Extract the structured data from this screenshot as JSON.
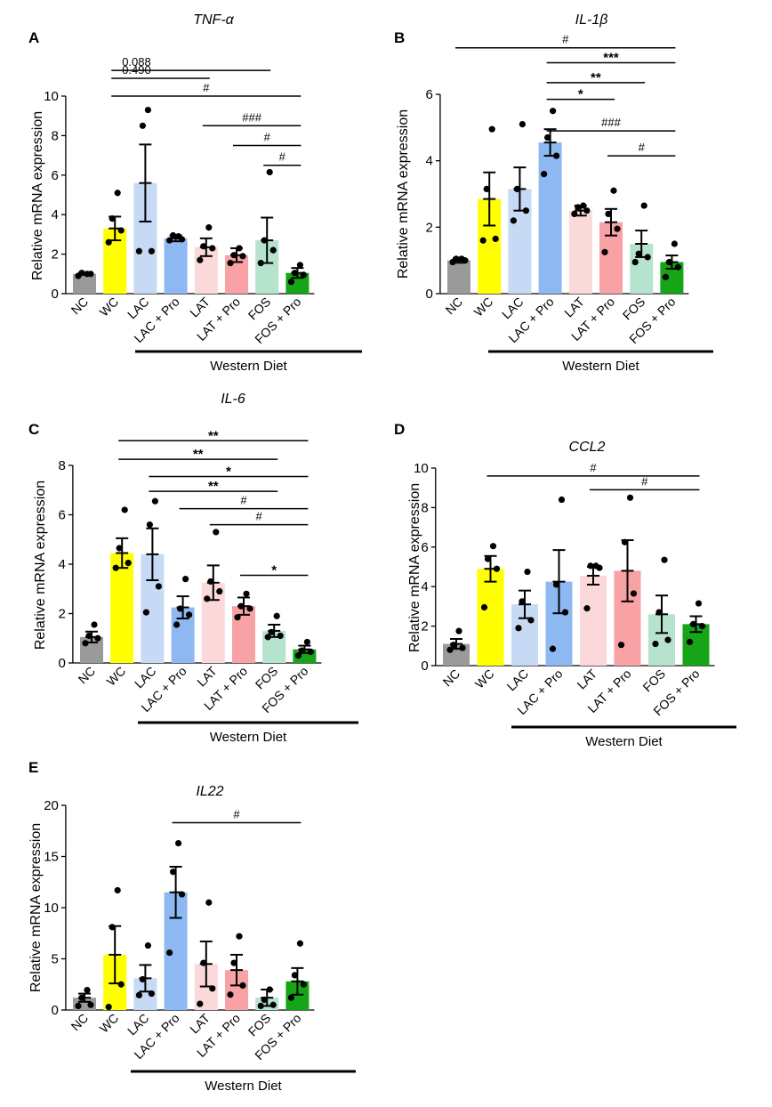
{
  "figure": {
    "group_label": "Western Diet",
    "categories": [
      "NC",
      "WC",
      "LAC",
      "LAC + Pro",
      "LAT",
      "LAT + Pro",
      "FOS",
      "FOS + Pro"
    ],
    "colors": [
      "#9a9a9a",
      "#ffff00",
      "#c6d9f5",
      "#8db8f2",
      "#fbd9da",
      "#f8a2a5",
      "#b5e3cd",
      "#16a516"
    ]
  },
  "chart_data": [
    {
      "id": "A",
      "type": "bar",
      "title": "TNF-α",
      "ylabel": "Relative mRNA expression",
      "ylim": [
        0,
        10
      ],
      "yticks": [
        0,
        2,
        4,
        6,
        8,
        10
      ],
      "categories": [
        "NC",
        "WC",
        "LAC",
        "LAC + Pro",
        "LAT",
        "LAT + Pro",
        "FOS",
        "FOS + Pro"
      ],
      "values": [
        1.0,
        3.3,
        5.6,
        2.8,
        2.35,
        1.95,
        2.7,
        1.05
      ],
      "sem": [
        0.05,
        0.6,
        1.95,
        0.15,
        0.45,
        0.35,
        1.15,
        0.25
      ],
      "points": [
        [
          0.9,
          1.0,
          1.05,
          1.0
        ],
        [
          2.6,
          3.2,
          3.8,
          5.1
        ],
        [
          2.15,
          2.15,
          8.5,
          9.3
        ],
        [
          2.7,
          2.75,
          2.95,
          2.9
        ],
        [
          1.7,
          2.3,
          2.4,
          3.35
        ],
        [
          1.55,
          1.9,
          1.95,
          2.3
        ],
        [
          1.55,
          2.2,
          2.7,
          6.15
        ],
        [
          0.6,
          0.95,
          1.05,
          1.45
        ]
      ],
      "comparisons": [
        {
          "label": "0.088",
          "from": "WC",
          "to": "FOS",
          "y": 11.3,
          "style": "p"
        },
        {
          "label": "0.490",
          "from": "WC",
          "to": "LAT",
          "y": 10.9,
          "style": "p"
        },
        {
          "label": "#",
          "from": "WC",
          "to": "FOS + Pro",
          "y": 10.0,
          "style": "hash"
        },
        {
          "label": "###",
          "from": "LAT",
          "to": "FOS + Pro",
          "y": 8.5,
          "style": "hash"
        },
        {
          "label": "#",
          "from": "LAT + Pro",
          "to": "FOS + Pro",
          "y": 7.5,
          "style": "hash"
        },
        {
          "label": "#",
          "from": "FOS",
          "to": "FOS + Pro",
          "y": 6.5,
          "style": "hash"
        }
      ]
    },
    {
      "id": "B",
      "type": "bar",
      "title": "IL-1β",
      "ylabel": "Relative mRNA expression",
      "ylim": [
        0,
        6
      ],
      "yticks": [
        0,
        2,
        4,
        6
      ],
      "categories": [
        "NC",
        "WC",
        "LAC",
        "LAC + Pro",
        "LAT",
        "LAT + Pro",
        "FOS",
        "FOS + Pro"
      ],
      "values": [
        1.0,
        2.85,
        3.15,
        4.55,
        2.5,
        2.15,
        1.5,
        0.95
      ],
      "sem": [
        0.07,
        0.8,
        0.65,
        0.4,
        0.15,
        0.4,
        0.4,
        0.2
      ],
      "points": [
        [
          0.95,
          1.0,
          1.05,
          1.05
        ],
        [
          1.6,
          1.65,
          3.15,
          4.95
        ],
        [
          2.2,
          2.5,
          3.15,
          5.1
        ],
        [
          3.6,
          4.15,
          4.7,
          5.5
        ],
        [
          2.4,
          2.5,
          2.6,
          2.65
        ],
        [
          1.25,
          1.95,
          2.4,
          3.1
        ],
        [
          0.95,
          1.1,
          1.2,
          2.65
        ],
        [
          0.5,
          0.8,
          0.95,
          1.5
        ]
      ],
      "comparisons": [
        {
          "label": "#",
          "from": "NC",
          "to": "FOS + Pro",
          "y": 7.4,
          "style": "hash"
        },
        {
          "label": "***",
          "from": "LAC + Pro",
          "to": "FOS + Pro",
          "y": 6.95,
          "style": "star"
        },
        {
          "label": "**",
          "from": "LAC + Pro",
          "to": "FOS",
          "y": 6.35,
          "style": "star"
        },
        {
          "label": "*",
          "from": "LAC + Pro",
          "to": "LAT + Pro",
          "y": 5.85,
          "style": "star"
        },
        {
          "label": "###",
          "from": "LAC + Pro",
          "to": "FOS + Pro",
          "y": 4.9,
          "style": "hash"
        },
        {
          "label": "#",
          "from": "LAT + Pro",
          "to": "FOS + Pro",
          "y": 4.15,
          "style": "hash"
        }
      ]
    },
    {
      "id": "C",
      "type": "bar",
      "title": "IL-6",
      "ylabel": "Relative mRNA expression",
      "ylim": [
        0,
        8
      ],
      "yticks": [
        0,
        2,
        4,
        6,
        8
      ],
      "categories": [
        "NC",
        "WC",
        "LAC",
        "LAC + Pro",
        "LAT",
        "LAT + Pro",
        "FOS",
        "FOS + Pro"
      ],
      "values": [
        1.05,
        4.45,
        4.4,
        2.25,
        3.25,
        2.3,
        1.3,
        0.55
      ],
      "sem": [
        0.22,
        0.6,
        1.05,
        0.45,
        0.7,
        0.35,
        0.25,
        0.15
      ],
      "points": [
        [
          0.8,
          1.0,
          1.1,
          1.55
        ],
        [
          3.85,
          4.05,
          4.65,
          6.2
        ],
        [
          2.05,
          3.1,
          5.6,
          6.55
        ],
        [
          1.55,
          1.95,
          2.2,
          3.4
        ],
        [
          2.6,
          2.9,
          3.3,
          5.3
        ],
        [
          1.85,
          2.2,
          2.3,
          2.8
        ],
        [
          1.05,
          1.1,
          1.25,
          1.9
        ],
        [
          0.3,
          0.45,
          0.5,
          0.85
        ]
      ],
      "comparisons": [
        {
          "label": "**",
          "from": "WC",
          "to": "FOS + Pro",
          "y": 9.0,
          "style": "star"
        },
        {
          "label": "**",
          "from": "WC",
          "to": "FOS",
          "y": 8.25,
          "style": "star"
        },
        {
          "label": "*",
          "from": "LAC",
          "to": "FOS + Pro",
          "y": 7.55,
          "style": "star"
        },
        {
          "label": "**",
          "from": "LAC",
          "to": "FOS",
          "y": 6.95,
          "style": "star"
        },
        {
          "label": "#",
          "from": "LAC + Pro",
          "to": "FOS + Pro",
          "y": 6.25,
          "style": "hash"
        },
        {
          "label": "#",
          "from": "LAT",
          "to": "FOS + Pro",
          "y": 5.6,
          "style": "hash"
        },
        {
          "label": "*",
          "from": "LAT + Pro",
          "to": "FOS + Pro",
          "y": 3.55,
          "style": "star"
        }
      ]
    },
    {
      "id": "D",
      "type": "bar",
      "title": "CCL2",
      "ylabel": "Relative mRNA expression",
      "ylim": [
        0,
        10
      ],
      "yticks": [
        0,
        2,
        4,
        6,
        8,
        10
      ],
      "categories": [
        "NC",
        "WC",
        "LAC",
        "LAC + Pro",
        "LAT",
        "LAT + Pro",
        "FOS",
        "FOS + Pro"
      ],
      "values": [
        1.1,
        4.9,
        3.1,
        4.25,
        4.55,
        4.8,
        2.6,
        2.1
      ],
      "sem": [
        0.25,
        0.65,
        0.7,
        1.6,
        0.45,
        1.55,
        0.95,
        0.4
      ],
      "points": [
        [
          0.8,
          0.9,
          1.05,
          1.75
        ],
        [
          2.95,
          4.9,
          5.4,
          6.05
        ],
        [
          1.9,
          2.3,
          3.25,
          4.75
        ],
        [
          0.85,
          2.7,
          4.1,
          8.4
        ],
        [
          2.9,
          4.95,
          5.05,
          5.05
        ],
        [
          1.05,
          3.65,
          6.25,
          8.5
        ],
        [
          1.1,
          1.3,
          2.7,
          5.35
        ],
        [
          1.2,
          2.0,
          2.1,
          3.15
        ]
      ],
      "comparisons": [
        {
          "label": "#",
          "from": "WC",
          "to": "FOS + Pro",
          "y": 9.6,
          "style": "hash"
        },
        {
          "label": "#",
          "from": "LAT",
          "to": "FOS + Pro",
          "y": 8.9,
          "style": "hash"
        }
      ]
    },
    {
      "id": "E",
      "type": "bar",
      "title": "IL22",
      "ylabel": "Relative mRNA expression",
      "ylim": [
        0,
        20
      ],
      "yticks": [
        0,
        5,
        10,
        15,
        20
      ],
      "categories": [
        "NC",
        "WC",
        "LAC",
        "LAC + Pro",
        "LAT",
        "LAT + Pro",
        "FOS",
        "FOS + Pro"
      ],
      "values": [
        1.2,
        5.4,
        3.1,
        11.5,
        4.5,
        3.9,
        1.2,
        2.8
      ],
      "sem": [
        0.4,
        2.8,
        1.3,
        2.5,
        2.2,
        1.5,
        0.8,
        1.3
      ],
      "points": [
        [
          0.4,
          0.5,
          1.2,
          1.95
        ],
        [
          0.3,
          2.5,
          8.1,
          11.7
        ],
        [
          1.45,
          1.6,
          3.0,
          6.3
        ],
        [
          5.6,
          11.3,
          13.5,
          16.3
        ],
        [
          0.6,
          2.1,
          4.6,
          10.5
        ],
        [
          1.5,
          2.4,
          4.6,
          7.2
        ],
        [
          0.4,
          0.5,
          1.0,
          2.0
        ],
        [
          1.2,
          2.5,
          3.4,
          6.5
        ]
      ],
      "comparisons": [
        {
          "label": "#",
          "from": "LAC + Pro",
          "to": "FOS + Pro",
          "y": 18.3,
          "style": "hash"
        }
      ]
    }
  ]
}
